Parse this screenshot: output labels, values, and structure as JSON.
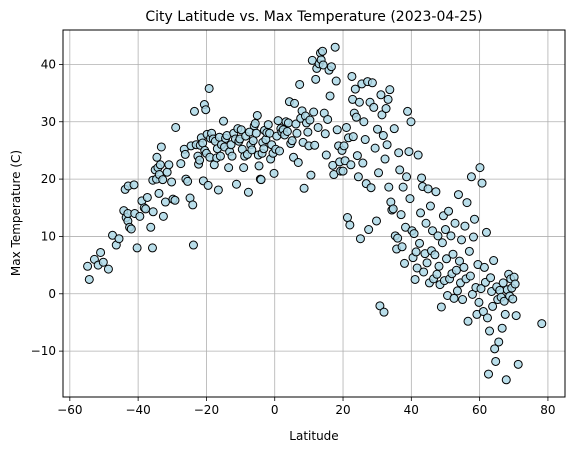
{
  "chart_data": {
    "type": "scatter",
    "title": "City Latitude vs. Max Temperature (2023-04-25)",
    "xlabel": "Latitude",
    "ylabel": "Max Temperature (C)",
    "xlim": [
      -62,
      85
    ],
    "ylim": [
      -18,
      46
    ],
    "xticks": [
      -60,
      -40,
      -20,
      0,
      20,
      40,
      60,
      80
    ],
    "yticks": [
      -10,
      0,
      10,
      20,
      30,
      40
    ],
    "grid": true,
    "legend": "none",
    "colors": {
      "marker_fill": "#add8e6",
      "marker_edge": "#000000",
      "grid": "#b0b0b0"
    },
    "points": [
      [
        -54.8,
        4.8
      ],
      [
        -54.3,
        2.5
      ],
      [
        -52.8,
        6.0
      ],
      [
        -51.7,
        5.0
      ],
      [
        -51.0,
        7.2
      ],
      [
        -50.2,
        5.5
      ],
      [
        -48.7,
        4.3
      ],
      [
        -47.5,
        10.2
      ],
      [
        -46.4,
        8.5
      ],
      [
        -45.6,
        9.6
      ],
      [
        -44.2,
        14.5
      ],
      [
        -43.8,
        18.2
      ],
      [
        -43.5,
        13.3
      ],
      [
        -43.0,
        12.7
      ],
      [
        -43.0,
        14.0
      ],
      [
        -42.9,
        18.8
      ],
      [
        -42.5,
        11.6
      ],
      [
        -42.0,
        11.3
      ],
      [
        -41.2,
        19.0
      ],
      [
        -41.0,
        14.0
      ],
      [
        -40.3,
        8.0
      ],
      [
        -39.5,
        13.5
      ],
      [
        -38.9,
        16.2
      ],
      [
        -38.2,
        15.0
      ],
      [
        -37.8,
        14.8
      ],
      [
        -37.3,
        16.8
      ],
      [
        -36.3,
        11.6
      ],
      [
        -35.8,
        8.0
      ],
      [
        -35.7,
        19.8
      ],
      [
        -35.6,
        14.3
      ],
      [
        -35.0,
        21.6
      ],
      [
        -34.6,
        20.0
      ],
      [
        -34.5,
        23.8
      ],
      [
        -34.2,
        22.0
      ],
      [
        -33.9,
        17.5
      ],
      [
        -33.8,
        20.8
      ],
      [
        -33.5,
        22.5
      ],
      [
        -33.2,
        25.6
      ],
      [
        -32.8,
        19.9
      ],
      [
        -32.6,
        13.5
      ],
      [
        -32.0,
        16.0
      ],
      [
        -31.5,
        21.2
      ],
      [
        -31.0,
        22.5
      ],
      [
        -30.2,
        19.5
      ],
      [
        -29.8,
        16.5
      ],
      [
        -29.2,
        16.3
      ],
      [
        -29.0,
        29.0
      ],
      [
        -27.5,
        22.7
      ],
      [
        -26.5,
        25.2
      ],
      [
        -26.2,
        24.3
      ],
      [
        -26.0,
        20.0
      ],
      [
        -25.5,
        19.6
      ],
      [
        -24.8,
        16.7
      ],
      [
        -24.5,
        25.8
      ],
      [
        -24.0,
        15.5
      ],
      [
        -23.8,
        8.5
      ],
      [
        -23.5,
        31.8
      ],
      [
        -23.0,
        26.0
      ],
      [
        -22.5,
        24.0
      ],
      [
        -22.3,
        22.6
      ],
      [
        -22.0,
        23.3
      ],
      [
        -21.8,
        25.9
      ],
      [
        -21.5,
        27.2
      ],
      [
        -21.1,
        26.3
      ],
      [
        -20.9,
        19.7
      ],
      [
        -20.6,
        33.0
      ],
      [
        -20.5,
        25.0
      ],
      [
        -20.2,
        32.1
      ],
      [
        -20.0,
        24.5
      ],
      [
        -19.8,
        27.8
      ],
      [
        -19.5,
        18.9
      ],
      [
        -19.2,
        35.8
      ],
      [
        -19.0,
        23.8
      ],
      [
        -18.8,
        27.1
      ],
      [
        -18.5,
        28.0
      ],
      [
        -18.0,
        27.0
      ],
      [
        -17.7,
        22.5
      ],
      [
        -17.4,
        26.6
      ],
      [
        -17.0,
        23.7
      ],
      [
        -16.8,
        25.3
      ],
      [
        -16.5,
        18.1
      ],
      [
        -16.2,
        27.3
      ],
      [
        -15.9,
        24.0
      ],
      [
        -15.6,
        26.0
      ],
      [
        -15.0,
        30.1
      ],
      [
        -14.7,
        25.6
      ],
      [
        -14.4,
        27.1
      ],
      [
        -14.0,
        27.6
      ],
      [
        -13.5,
        22.0
      ],
      [
        -13.2,
        24.8
      ],
      [
        -12.8,
        26.0
      ],
      [
        -12.5,
        24.0
      ],
      [
        -12.0,
        28.0
      ],
      [
        -11.5,
        27.0
      ],
      [
        -11.2,
        19.1
      ],
      [
        -10.8,
        28.8
      ],
      [
        -10.5,
        26.6
      ],
      [
        -10.2,
        27.0
      ],
      [
        -9.8,
        28.6
      ],
      [
        -9.5,
        25.2
      ],
      [
        -9.1,
        22.0
      ],
      [
        -8.8,
        24.0
      ],
      [
        -8.5,
        27.5
      ],
      [
        -8.0,
        24.3
      ],
      [
        -7.7,
        17.7
      ],
      [
        -7.4,
        28.2
      ],
      [
        -7.0,
        26.0
      ],
      [
        -6.7,
        25.1
      ],
      [
        -6.3,
        26.7
      ],
      [
        -6.0,
        29.3
      ],
      [
        -5.7,
        29.7
      ],
      [
        -5.4,
        28.0
      ],
      [
        -5.1,
        31.1
      ],
      [
        -4.8,
        24.2
      ],
      [
        -4.6,
        22.3
      ],
      [
        -4.2,
        20.0
      ],
      [
        -4.0,
        19.9
      ],
      [
        -3.7,
        24.5
      ],
      [
        -3.5,
        26.4
      ],
      [
        -3.2,
        25.3
      ],
      [
        -3.0,
        28.5
      ],
      [
        -2.6,
        26.9
      ],
      [
        -2.3,
        28.1
      ],
      [
        -1.9,
        29.5
      ],
      [
        -1.5,
        28.0
      ],
      [
        -1.2,
        23.5
      ],
      [
        -0.9,
        26.0
      ],
      [
        -0.5,
        24.5
      ],
      [
        -0.2,
        21.0
      ],
      [
        0.3,
        25.2
      ],
      [
        0.6,
        27.5
      ],
      [
        1.0,
        30.2
      ],
      [
        1.4,
        24.9
      ],
      [
        1.8,
        28.8
      ],
      [
        2.1,
        28.2
      ],
      [
        2.5,
        28.6
      ],
      [
        2.9,
        27.7
      ],
      [
        3.3,
        30.0
      ],
      [
        3.7,
        28.3
      ],
      [
        4.0,
        29.8
      ],
      [
        4.3,
        33.5
      ],
      [
        4.7,
        26.2
      ],
      [
        5.1,
        26.7
      ],
      [
        5.5,
        23.8
      ],
      [
        5.8,
        33.2
      ],
      [
        6.2,
        29.6
      ],
      [
        6.5,
        28.0
      ],
      [
        6.9,
        22.9
      ],
      [
        7.3,
        36.5
      ],
      [
        7.6,
        30.6
      ],
      [
        8.0,
        31.9
      ],
      [
        8.3,
        26.4
      ],
      [
        8.6,
        18.4
      ],
      [
        9.0,
        31.0
      ],
      [
        9.3,
        29.8
      ],
      [
        9.7,
        28.2
      ],
      [
        10.0,
        25.8
      ],
      [
        10.3,
        30.3
      ],
      [
        10.6,
        20.7
      ],
      [
        11.0,
        40.7
      ],
      [
        11.4,
        31.7
      ],
      [
        11.7,
        25.9
      ],
      [
        12.0,
        37.4
      ],
      [
        12.3,
        39.3
      ],
      [
        12.7,
        29.0
      ],
      [
        13.0,
        40.1
      ],
      [
        13.4,
        42.0
      ],
      [
        13.6,
        40.8
      ],
      [
        14.0,
        42.3
      ],
      [
        14.2,
        39.9
      ],
      [
        14.5,
        31.5
      ],
      [
        14.8,
        27.9
      ],
      [
        15.1,
        24.2
      ],
      [
        15.5,
        30.4
      ],
      [
        15.9,
        39.0
      ],
      [
        16.2,
        34.5
      ],
      [
        16.6,
        39.6
      ],
      [
        17.0,
        22.4
      ],
      [
        17.3,
        20.8
      ],
      [
        17.7,
        43.0
      ],
      [
        18.0,
        37.1
      ],
      [
        18.3,
        28.6
      ],
      [
        18.7,
        25.8
      ],
      [
        19.0,
        23.0
      ],
      [
        19.3,
        21.4
      ],
      [
        19.7,
        25.0
      ],
      [
        20.0,
        21.4
      ],
      [
        20.3,
        25.8
      ],
      [
        20.6,
        23.2
      ],
      [
        21.0,
        29.0
      ],
      [
        21.3,
        13.3
      ],
      [
        21.6,
        27.2
      ],
      [
        22.0,
        12.0
      ],
      [
        22.3,
        22.5
      ],
      [
        22.6,
        37.9
      ],
      [
        22.8,
        33.9
      ],
      [
        23.0,
        27.4
      ],
      [
        23.3,
        31.5
      ],
      [
        23.6,
        35.7
      ],
      [
        23.9,
        30.8
      ],
      [
        24.2,
        24.1
      ],
      [
        24.5,
        20.4
      ],
      [
        24.8,
        33.4
      ],
      [
        25.1,
        9.6
      ],
      [
        25.5,
        36.6
      ],
      [
        25.8,
        22.8
      ],
      [
        26.1,
        30.0
      ],
      [
        26.5,
        26.9
      ],
      [
        26.8,
        19.2
      ],
      [
        27.2,
        37.0
      ],
      [
        27.5,
        11.2
      ],
      [
        27.9,
        33.4
      ],
      [
        28.2,
        18.5
      ],
      [
        28.6,
        36.8
      ],
      [
        29.0,
        32.5
      ],
      [
        29.4,
        25.4
      ],
      [
        29.8,
        12.7
      ],
      [
        30.1,
        28.7
      ],
      [
        30.4,
        21.1
      ],
      [
        30.8,
        -2.1
      ],
      [
        31.1,
        34.7
      ],
      [
        31.4,
        31.2
      ],
      [
        31.8,
        27.6
      ],
      [
        32.0,
        -3.2
      ],
      [
        32.3,
        23.5
      ],
      [
        32.6,
        32.3
      ],
      [
        32.9,
        26.0
      ],
      [
        33.2,
        33.9
      ],
      [
        33.4,
        18.6
      ],
      [
        33.7,
        35.6
      ],
      [
        34.0,
        16.0
      ],
      [
        34.3,
        14.6
      ],
      [
        34.7,
        14.8
      ],
      [
        35.0,
        28.8
      ],
      [
        35.3,
        10.1
      ],
      [
        35.7,
        7.8
      ],
      [
        36.0,
        9.7
      ],
      [
        36.3,
        24.6
      ],
      [
        36.6,
        21.6
      ],
      [
        37.0,
        13.8
      ],
      [
        37.3,
        8.2
      ],
      [
        37.6,
        18.6
      ],
      [
        38.0,
        5.3
      ],
      [
        38.3,
        11.6
      ],
      [
        38.6,
        20.4
      ],
      [
        38.9,
        31.8
      ],
      [
        39.3,
        24.8
      ],
      [
        39.6,
        16.6
      ],
      [
        39.9,
        30.0
      ],
      [
        40.2,
        11.0
      ],
      [
        40.5,
        6.3
      ],
      [
        40.8,
        10.5
      ],
      [
        41.1,
        2.5
      ],
      [
        41.4,
        7.3
      ],
      [
        41.7,
        4.5
      ],
      [
        42.0,
        24.2
      ],
      [
        42.4,
        8.8
      ],
      [
        42.7,
        14.1
      ],
      [
        43.0,
        20.2
      ],
      [
        43.3,
        18.7
      ],
      [
        43.6,
        3.8
      ],
      [
        44.0,
        7.0
      ],
      [
        44.3,
        12.3
      ],
      [
        44.6,
        5.4
      ],
      [
        44.9,
        18.3
      ],
      [
        45.3,
        1.9
      ],
      [
        45.6,
        15.3
      ],
      [
        45.9,
        7.5
      ],
      [
        46.2,
        11.0
      ],
      [
        46.5,
        2.6
      ],
      [
        46.9,
        6.8
      ],
      [
        47.2,
        17.8
      ],
      [
        47.5,
        3.4
      ],
      [
        47.8,
        10.1
      ],
      [
        48.1,
        4.8
      ],
      [
        48.4,
        1.6
      ],
      [
        48.8,
        -2.3
      ],
      [
        49.1,
        8.9
      ],
      [
        49.4,
        13.6
      ],
      [
        49.7,
        2.3
      ],
      [
        50.0,
        11.2
      ],
      [
        50.3,
        6.1
      ],
      [
        50.6,
        -0.3
      ],
      [
        50.9,
        14.4
      ],
      [
        51.2,
        2.6
      ],
      [
        51.6,
        10.1
      ],
      [
        51.9,
        3.5
      ],
      [
        52.2,
        6.9
      ],
      [
        52.5,
        -0.8
      ],
      [
        52.8,
        12.3
      ],
      [
        53.2,
        4.1
      ],
      [
        53.5,
        0.5
      ],
      [
        53.8,
        17.3
      ],
      [
        54.1,
        5.7
      ],
      [
        54.4,
        1.9
      ],
      [
        54.7,
        9.4
      ],
      [
        55.0,
        -1.0
      ],
      [
        55.4,
        4.6
      ],
      [
        55.7,
        11.8
      ],
      [
        56.0,
        2.6
      ],
      [
        56.3,
        15.9
      ],
      [
        56.6,
        -4.8
      ],
      [
        57.0,
        7.4
      ],
      [
        57.3,
        3.1
      ],
      [
        57.6,
        20.4
      ],
      [
        57.9,
        -0.1
      ],
      [
        58.2,
        9.9
      ],
      [
        58.5,
        13.0
      ],
      [
        58.9,
        1.1
      ],
      [
        59.2,
        -3.6
      ],
      [
        59.5,
        5.1
      ],
      [
        59.8,
        -1.5
      ],
      [
        60.1,
        22.0
      ],
      [
        60.4,
        0.9
      ],
      [
        60.7,
        19.3
      ],
      [
        61.1,
        -3.1
      ],
      [
        61.4,
        4.6
      ],
      [
        61.7,
        2.0
      ],
      [
        62.0,
        10.7
      ],
      [
        62.3,
        -4.2
      ],
      [
        62.6,
        -14.0
      ],
      [
        62.9,
        -6.5
      ],
      [
        63.2,
        2.8
      ],
      [
        63.5,
        0.4
      ],
      [
        63.8,
        -2.2
      ],
      [
        64.1,
        5.8
      ],
      [
        64.4,
        -9.6
      ],
      [
        64.7,
        -11.8
      ],
      [
        65.0,
        1.2
      ],
      [
        65.3,
        -1.0
      ],
      [
        65.6,
        -8.4
      ],
      [
        65.9,
        0.6
      ],
      [
        66.3,
        -0.6
      ],
      [
        66.6,
        -6.0
      ],
      [
        66.9,
        1.9
      ],
      [
        67.2,
        -1.3
      ],
      [
        67.5,
        -3.6
      ],
      [
        67.8,
        -15.0
      ],
      [
        68.1,
        0.7
      ],
      [
        68.5,
        3.4
      ],
      [
        68.8,
        -0.4
      ],
      [
        69.1,
        2.6
      ],
      [
        69.4,
        1.0
      ],
      [
        69.7,
        -0.9
      ],
      [
        70.1,
        2.9
      ],
      [
        70.4,
        1.7
      ],
      [
        70.7,
        -3.8
      ],
      [
        71.3,
        -12.3
      ],
      [
        78.2,
        -5.2
      ]
    ]
  }
}
